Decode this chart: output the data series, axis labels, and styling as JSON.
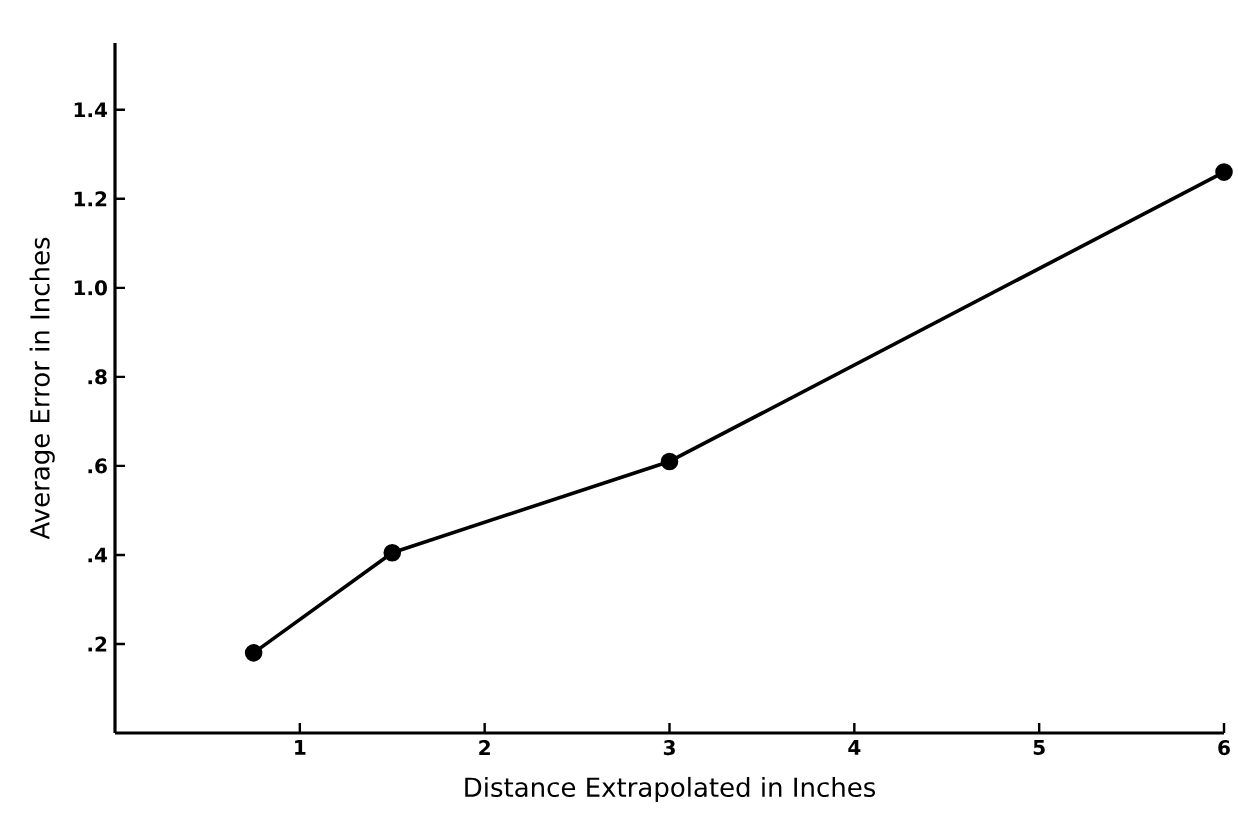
{
  "chart_data": {
    "type": "line",
    "xlabel": "Distance  Extrapolated  in  Inches",
    "ylabel": "Average Error in Inches",
    "x": [
      0.75,
      1.5,
      3,
      6
    ],
    "series": [
      {
        "color": "#000000",
        "values": [
          0.18,
          0.405,
          0.61,
          1.26
        ]
      }
    ],
    "xlim": [
      0,
      6
    ],
    "ylim": [
      0,
      1.55
    ],
    "xticks": [
      1,
      2,
      3,
      4,
      5,
      6
    ],
    "yticks": [
      {
        "value": 0.2,
        "label": ".2"
      },
      {
        "value": 0.4,
        "label": ".4"
      },
      {
        "value": 0.6,
        "label": ".6"
      },
      {
        "value": 0.8,
        "label": ".8"
      },
      {
        "value": 1.0,
        "label": "1.0"
      },
      {
        "value": 1.2,
        "label": "1.2"
      },
      {
        "value": 1.4,
        "label": "1.4"
      }
    ],
    "grid": false,
    "marker": "circle",
    "line_style": "solid"
  }
}
